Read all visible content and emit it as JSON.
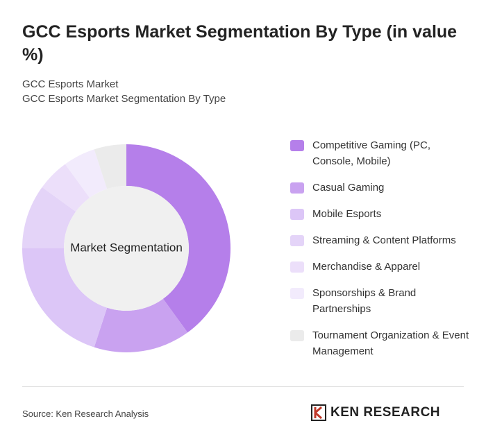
{
  "chart_data": {
    "type": "donut",
    "title": "GCC Esports Market Segmentation By Type (in value %)",
    "subtitle": [
      "GCC Esports Market",
      "GCC Esports Market Segmentation By Type"
    ],
    "center_label": "Market Segmentation",
    "categories": [
      "Competitive Gaming (PC, Console, Mobile)",
      "Casual Gaming",
      "Mobile Esports",
      "Streaming & Content Platforms",
      "Merchandise & Apparel",
      "Sponsorships & Brand Partnerships",
      "Tournament Organization & Event Management"
    ],
    "values": [
      40,
      15,
      20,
      10,
      5,
      5,
      5
    ],
    "colors": [
      "#b57fea",
      "#c9a2f0",
      "#dcc6f7",
      "#e4d4f8",
      "#ecdffa",
      "#f2ebfc",
      "#ebebeb"
    ]
  },
  "source": "Source: Ken Research Analysis",
  "logo": "KEN RESEARCH"
}
